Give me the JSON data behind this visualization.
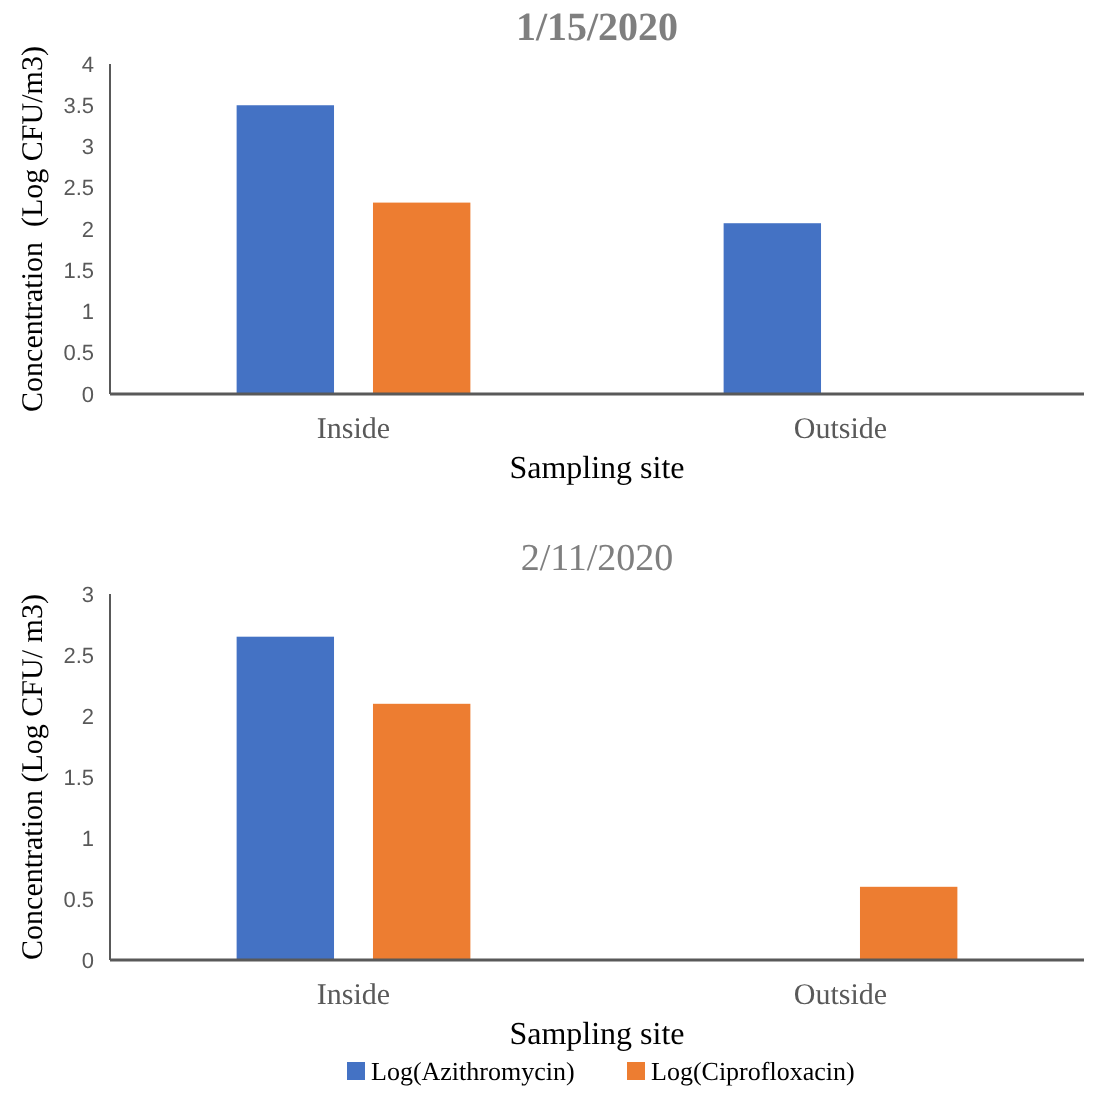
{
  "chart_data": [
    {
      "type": "bar",
      "title": "1/15/2020",
      "xlabel": "Sampling site",
      "ylabel": "Concentration  (Log CFU/m3)",
      "categories": [
        "Inside",
        "Outside"
      ],
      "series": [
        {
          "color": "#4472c4",
          "values": [
            3.5,
            2.07
          ]
        },
        {
          "color": "#ed7d31",
          "values": [
            2.32,
            null
          ]
        }
      ],
      "ylim": [
        0,
        4
      ],
      "yticks": [
        0,
        0.5,
        1,
        1.5,
        2,
        2.5,
        3,
        3.5,
        4
      ],
      "grid": false,
      "legend": false
    },
    {
      "type": "bar",
      "title": "2/11/2020",
      "xlabel": "Sampling site",
      "ylabel": "Concentration (Log CFU/ m3)",
      "categories": [
        "Inside",
        "Outside"
      ],
      "series": [
        {
          "name": "Log(Azithromycin)",
          "color": "#4472c4",
          "values": [
            2.65,
            null
          ]
        },
        {
          "name": "Log(Ciprofloxacin)",
          "color": "#ed7d31",
          "values": [
            2.1,
            0.6
          ]
        }
      ],
      "ylim": [
        0,
        3
      ],
      "yticks": [
        0,
        0.5,
        1,
        1.5,
        2,
        2.5,
        3
      ],
      "grid": false,
      "legend": "bottom"
    }
  ]
}
